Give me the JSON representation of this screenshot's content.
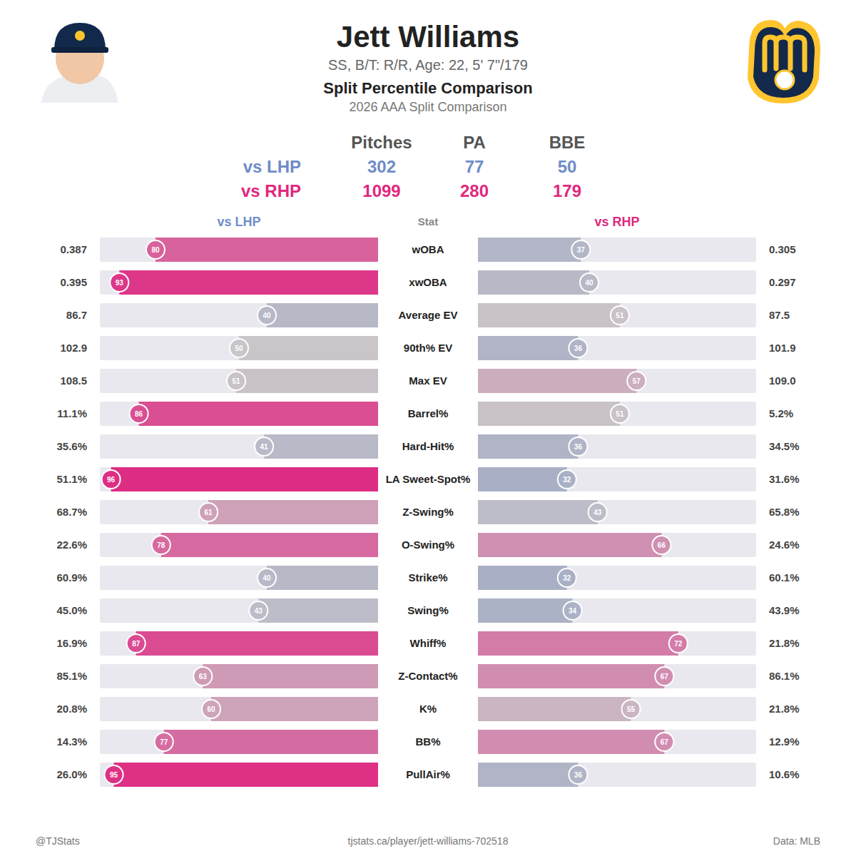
{
  "header": {
    "name": "Jett Williams",
    "info": "SS, B/T: R/R, Age: 22, 5' 7\"/179"
  },
  "sample_sizes": {
    "columns": [
      "Pitches",
      "PA",
      "BBE"
    ],
    "rows": [
      {
        "name": "vs LHP",
        "values": [
          302,
          77,
          50
        ]
      },
      {
        "name": "vs RHP",
        "values": [
          1099,
          280,
          179
        ]
      }
    ]
  },
  "chart_data": {
    "type": "bar",
    "orientation": "horizontal",
    "title": "Split Percentile Comparison",
    "subtitle": "2026 AAA Split Comparison",
    "y_label": "Stat",
    "categories": [
      "wOBA",
      "xwOBA",
      "Average EV",
      "90th% EV",
      "Max EV",
      "Barrel%",
      "Hard-Hit%",
      "LA Sweet-Spot%",
      "Z-Swing%",
      "O-Swing%",
      "Strike%",
      "Swing%",
      "Whiff%",
      "Z-Contact%",
      "K%",
      "BB%",
      "PullAir%"
    ],
    "series": [
      {
        "name": "vs LHP",
        "color": "#6f8cc8",
        "values": [
          80,
          93,
          40,
          50,
          51,
          86,
          41,
          96,
          61,
          78,
          40,
          43,
          87,
          63,
          60,
          77,
          95
        ],
        "stats": [
          "0.387",
          "0.395",
          "86.7",
          "102.9",
          "108.5",
          "11.1%",
          "35.6%",
          "51.1%",
          "68.7%",
          "22.6%",
          "60.9%",
          "45.0%",
          "16.9%",
          "85.1%",
          "20.8%",
          "14.3%",
          "26.0%"
        ]
      },
      {
        "name": "vs RHP",
        "color": "#e0287e",
        "values": [
          37,
          40,
          51,
          36,
          57,
          51,
          36,
          32,
          43,
          66,
          32,
          34,
          72,
          67,
          55,
          67,
          36
        ],
        "stats": [
          "0.305",
          "0.297",
          "87.5",
          "101.9",
          "109.0",
          "5.2%",
          "34.5%",
          "31.6%",
          "65.8%",
          "24.6%",
          "60.1%",
          "43.9%",
          "21.8%",
          "86.1%",
          "21.8%",
          "12.9%",
          "10.6%"
        ]
      }
    ],
    "xlim": [
      0,
      100
    ],
    "tick_labels": false,
    "grid": false,
    "data_labels": true
  },
  "footer": {
    "left": "@TJStats",
    "center": "tjstats.ca/player/jett-williams-702518",
    "right": "Data: MLB"
  }
}
